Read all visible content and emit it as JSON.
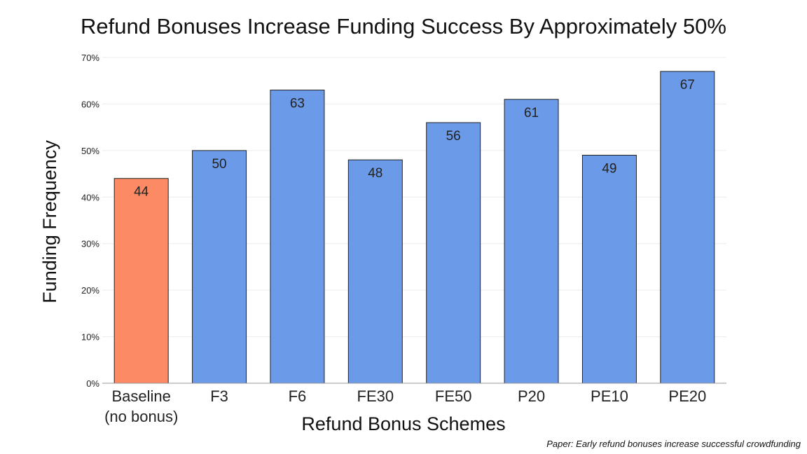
{
  "chart_data": {
    "type": "bar",
    "title": "Refund Bonuses Increase Funding Success By Approximately 50%",
    "xlabel": "Refund Bonus Schemes",
    "ylabel": "Funding Frequency",
    "categories": [
      "Baseline\n(no bonus)",
      "F3",
      "F6",
      "FE30",
      "FE50",
      "P20",
      "PE10",
      "PE20"
    ],
    "values": [
      44,
      50,
      63,
      48,
      56,
      61,
      49,
      67
    ],
    "data_labels": [
      "44",
      "50",
      "63",
      "48",
      "56",
      "61",
      "49",
      "67"
    ],
    "ylim": [
      0,
      70
    ],
    "yticks": [
      0,
      10,
      20,
      30,
      40,
      50,
      60,
      70
    ],
    "ytick_labels": [
      "0%",
      "10%",
      "20%",
      "30%",
      "40%",
      "50%",
      "60%",
      "70%"
    ],
    "grid": true,
    "legend": "none",
    "colors": {
      "baseline": "#fc8b65",
      "treatment": "#6a9ae8"
    }
  },
  "annotations": {
    "source_note": "Paper: Early refund bonuses increase successful crowdfunding"
  }
}
